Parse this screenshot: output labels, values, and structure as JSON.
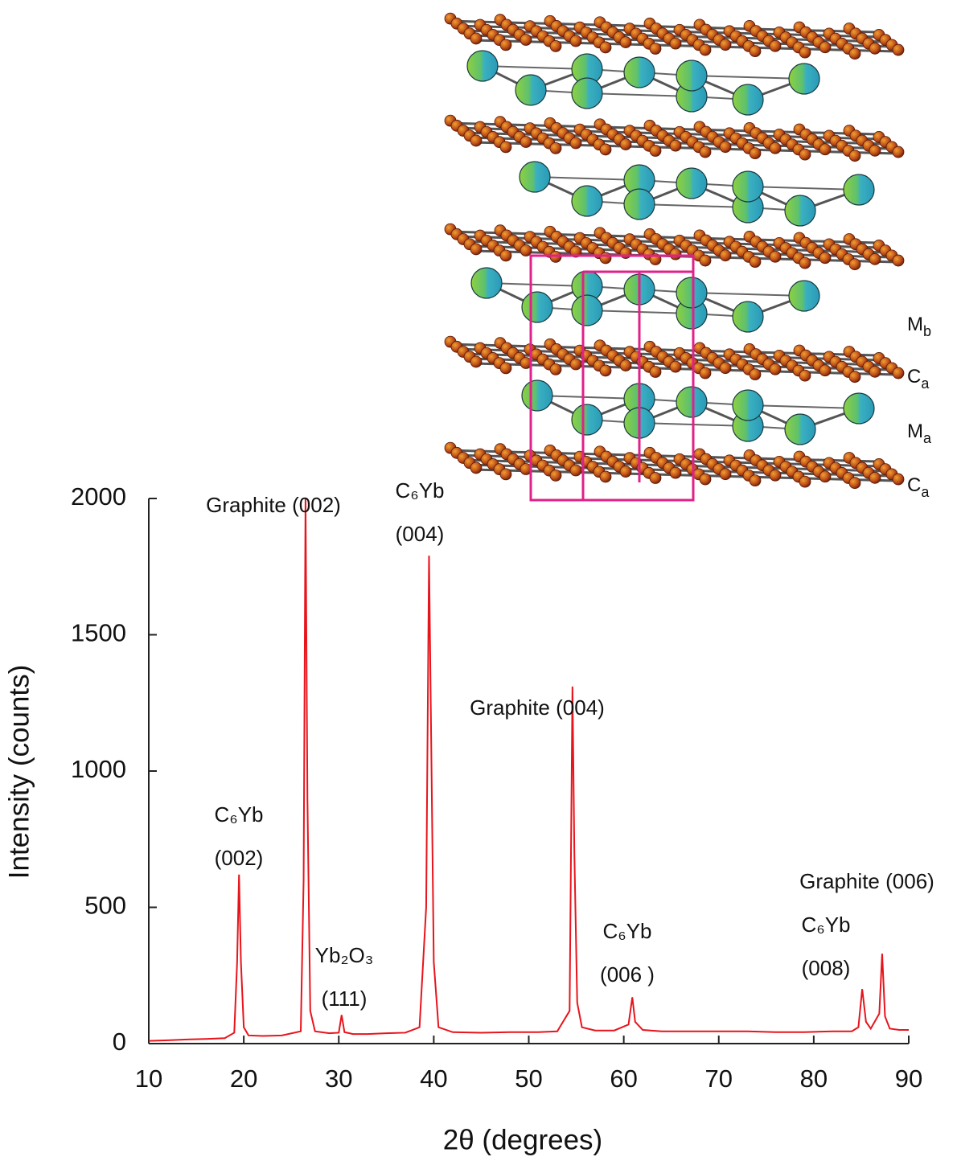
{
  "chart_data": {
    "type": "line",
    "x_label": "2θ (degrees)",
    "y_label": "Intensity (counts)",
    "color": "#e8141c",
    "x": [
      10,
      12,
      14,
      16,
      18,
      19,
      19.3,
      19.5,
      19.7,
      20,
      20.5,
      22,
      24,
      26,
      26.3,
      26.5,
      26.7,
      27,
      27.5,
      29,
      30,
      30.3,
      30.6,
      31.5,
      33,
      35,
      37,
      38.5,
      39.2,
      39.5,
      39.7,
      40,
      40.5,
      42,
      45,
      48,
      51,
      53,
      54.3,
      54.6,
      54.8,
      55.1,
      55.6,
      57,
      59,
      60.5,
      60.9,
      61.2,
      62,
      64,
      67,
      70,
      73,
      76,
      79,
      82,
      84,
      84.7,
      85.1,
      85.5,
      86,
      86.9,
      87.2,
      87.5,
      88,
      89,
      90
    ],
    "values": [
      10,
      12,
      15,
      17,
      20,
      40,
      300,
      620,
      300,
      60,
      30,
      28,
      30,
      45,
      600,
      2000,
      900,
      120,
      45,
      38,
      40,
      105,
      42,
      35,
      35,
      38,
      40,
      60,
      500,
      1790,
      1200,
      300,
      60,
      42,
      40,
      42,
      42,
      45,
      120,
      1310,
      700,
      150,
      60,
      48,
      48,
      70,
      170,
      80,
      50,
      45,
      45,
      45,
      45,
      42,
      42,
      45,
      45,
      60,
      200,
      80,
      55,
      110,
      330,
      100,
      55,
      50,
      50
    ],
    "xlim": [
      10,
      90
    ],
    "xticks": [
      10,
      20,
      30,
      40,
      50,
      60,
      70,
      80,
      90
    ],
    "ylim": [
      0,
      2000
    ],
    "yticks": [
      0,
      500,
      1000,
      1500,
      2000
    ],
    "grid": false,
    "annotations": [
      {
        "lines": [
          "Graphite (002)"
        ]
      },
      {
        "lines": [
          "C₆Yb",
          "(004)"
        ]
      },
      {
        "lines": [
          "C₆Yb",
          "(002)"
        ]
      },
      {
        "lines": [
          "Yb₂O₃",
          "(111)"
        ]
      },
      {
        "lines": [
          "Graphite (004)"
        ]
      },
      {
        "lines": [
          "C₆Yb",
          "(006 )"
        ]
      },
      {
        "lines": [
          "Graphite (006)"
        ]
      },
      {
        "lines": [
          "C₆Yb",
          "(008)"
        ]
      }
    ],
    "structure_labels": [
      {
        "text": "M",
        "sub": "b"
      },
      {
        "text": "C",
        "sub": "a"
      },
      {
        "text": "M",
        "sub": "a"
      },
      {
        "text": "C",
        "sub": "a"
      }
    ]
  }
}
